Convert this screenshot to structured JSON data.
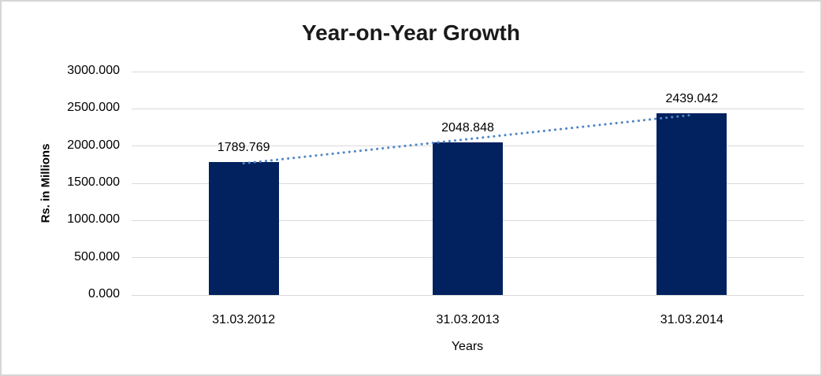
{
  "chart_data": {
    "type": "bar",
    "title": "Year-on-Year Growth",
    "categories": [
      "31.03.2012",
      "31.03.2013",
      "31.03.2014"
    ],
    "values": [
      1789.769,
      2048.848,
      2439.042
    ],
    "data_labels": [
      "1789.769",
      "2048.848",
      "2439.042"
    ],
    "xlabel": "Years",
    "ylabel": "Rs. in Millions",
    "ylim": [
      0,
      3000
    ],
    "ytick_step": 500,
    "ytick_labels": [
      "0.000",
      "500.000",
      "1000.000",
      "1500.000",
      "2000.000",
      "2500.000",
      "3000.000"
    ],
    "grid": true,
    "legend": false,
    "trendline": {
      "type": "linear",
      "style": "dotted"
    },
    "colors": {
      "bar": "#02215f",
      "trendline": "#4f86c6",
      "gridline": "#d9d9d9",
      "frame_border": "#d6d6d6",
      "text": "#000000",
      "title_text": "#1a1a1a"
    }
  }
}
